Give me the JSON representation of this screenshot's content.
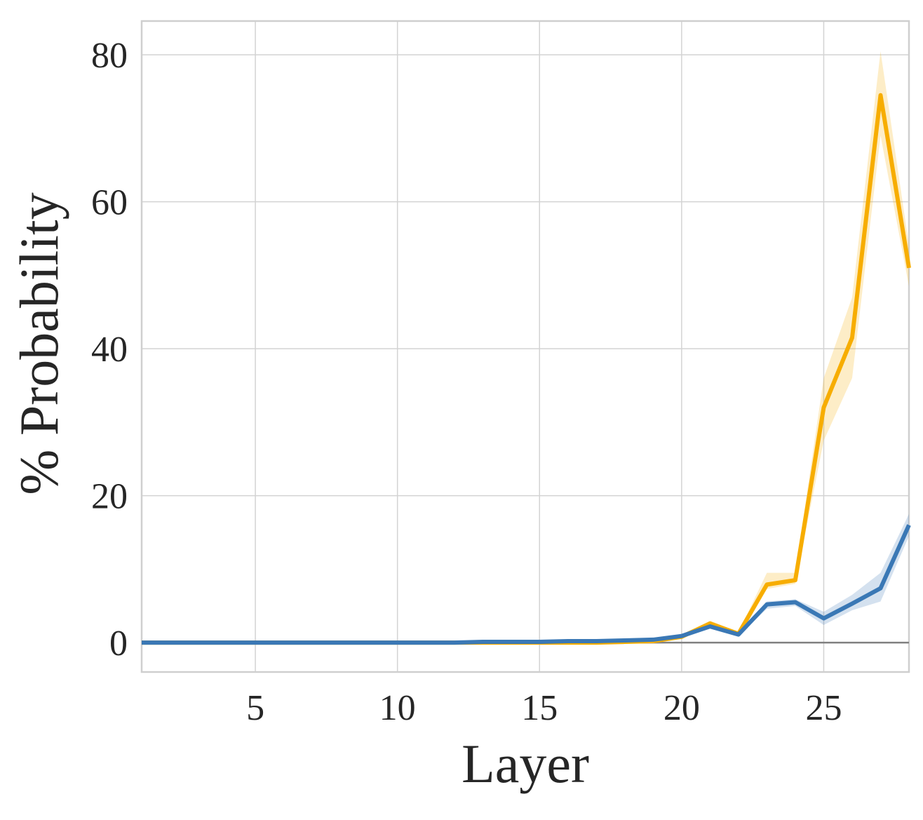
{
  "chart_data": {
    "type": "line",
    "x_label": "Layer",
    "y_label": "% Probability",
    "x": [
      1,
      2,
      3,
      4,
      5,
      6,
      7,
      8,
      9,
      10,
      11,
      12,
      13,
      14,
      15,
      16,
      17,
      18,
      19,
      20,
      21,
      22,
      23,
      24,
      25,
      26,
      27,
      28
    ],
    "xlim": [
      1,
      28
    ],
    "xticks": [
      5,
      10,
      15,
      20,
      25
    ],
    "ylim": [
      -4,
      84.6
    ],
    "yticks": [
      0,
      20,
      40,
      60,
      80
    ],
    "grid": true,
    "zero_line": true,
    "series": [
      {
        "color": "#f7ad00",
        "values": [
          0,
          0,
          0,
          0,
          0,
          0,
          0,
          0,
          0,
          0,
          0,
          0,
          0,
          0,
          0,
          0,
          0,
          0.1,
          0.2,
          0.8,
          2.6,
          1.2,
          7.9,
          8.5,
          32,
          41.5,
          74.5,
          51
        ],
        "lower": [
          0,
          0,
          0,
          0,
          0,
          0,
          0,
          0,
          0,
          0,
          0,
          0,
          0,
          0,
          0,
          0,
          0,
          0.05,
          0.1,
          0.6,
          2.2,
          1,
          7.3,
          8,
          27.5,
          36,
          69,
          48.5
        ],
        "upper": [
          0,
          0,
          0,
          0,
          0,
          0,
          0,
          0,
          0,
          0,
          0,
          0,
          0,
          0,
          0,
          0,
          0,
          0.15,
          0.3,
          1,
          3,
          1.4,
          9.5,
          9.5,
          36,
          47,
          80.5,
          54
        ]
      },
      {
        "color": "#3a78b5",
        "values": [
          0,
          0,
          0,
          0,
          0,
          0,
          0,
          0,
          0,
          0,
          0,
          0,
          0.1,
          0.1,
          0.1,
          0.2,
          0.2,
          0.3,
          0.4,
          0.9,
          2.2,
          1.1,
          5.2,
          5.5,
          3.3,
          5.3,
          7.4,
          16
        ],
        "lower": [
          0,
          0,
          0,
          0,
          0,
          0,
          0,
          0,
          0,
          0,
          0,
          0,
          0.05,
          0.05,
          0.05,
          0.1,
          0.1,
          0.2,
          0.3,
          0.7,
          1.9,
          0.9,
          4.6,
          5,
          2.4,
          4.4,
          5.6,
          14.5
        ],
        "upper": [
          0,
          0,
          0,
          0,
          0,
          0,
          0,
          0,
          0,
          0,
          0,
          0,
          0.15,
          0.15,
          0.15,
          0.3,
          0.3,
          0.4,
          0.5,
          1.1,
          2.5,
          1.3,
          5.6,
          5.9,
          4.2,
          6.5,
          9.5,
          17.5
        ]
      }
    ]
  }
}
